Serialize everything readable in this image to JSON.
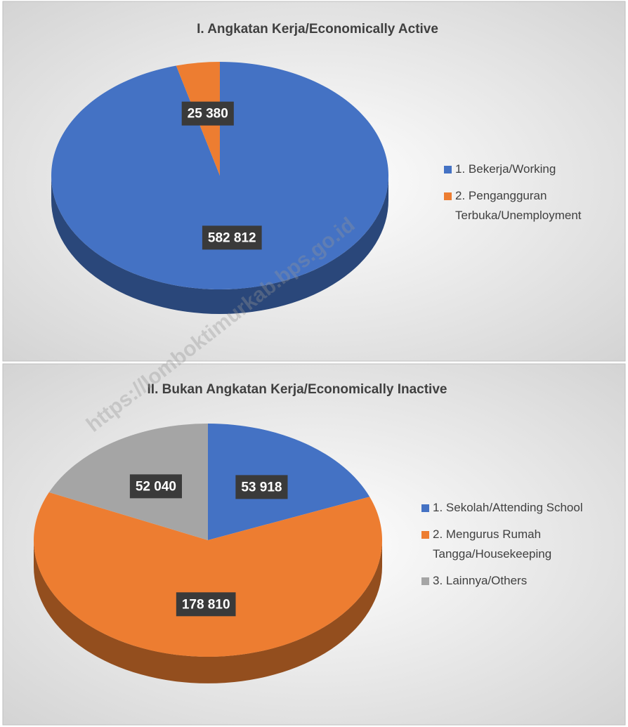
{
  "chart_data": [
    {
      "type": "pie",
      "title": "I. Angkatan Kerja/Economically Active",
      "categories": [
        "1. Bekerja/Working",
        "2. Pengangguran Terbuka/Unemployment"
      ],
      "values": [
        582812,
        25380
      ],
      "value_labels": [
        "582 812",
        "25 380"
      ],
      "colors": [
        "#4472c4",
        "#ed7d31"
      ],
      "legend": "right"
    },
    {
      "type": "pie",
      "title": "II. Bukan Angkatan Kerja/Economically Inactive",
      "categories": [
        "1. Sekolah/Attending School",
        "2. Mengurus Rumah Tangga/Housekeeping",
        "3. Lainnya/Others"
      ],
      "values": [
        53918,
        178810,
        52040
      ],
      "value_labels": [
        "53 918",
        "178 810",
        "52 040"
      ],
      "colors": [
        "#4472c4",
        "#ed7d31",
        "#a5a5a5"
      ],
      "legend": "right"
    }
  ],
  "watermark": "https://lomboktimurkab.bps.go.id"
}
